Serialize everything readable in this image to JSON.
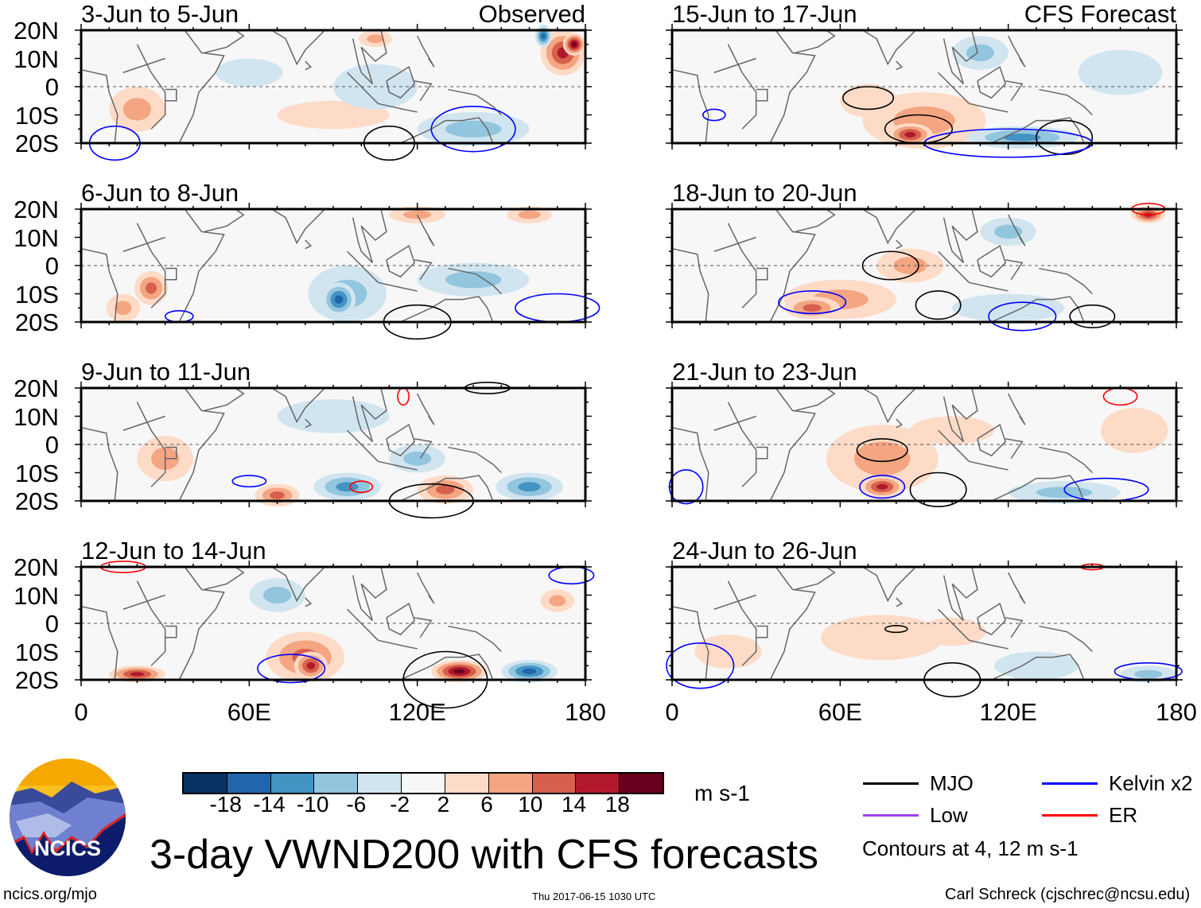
{
  "title": "3-day VWND200 with CFS forecasts",
  "columns": [
    {
      "label": "Observed",
      "panels": [
        "3-Jun to 5-Jun",
        "6-Jun to 8-Jun",
        "9-Jun to 11-Jun",
        "12-Jun to 14-Jun"
      ]
    },
    {
      "label": "CFS Forecast",
      "panels": [
        "15-Jun to 17-Jun",
        "18-Jun to 20-Jun",
        "21-Jun to 23-Jun",
        "24-Jun to 26-Jun"
      ]
    }
  ],
  "lat_ticks": [
    "20N",
    "10N",
    "0",
    "10S",
    "20S"
  ],
  "lon_ticks": [
    "0",
    "60E",
    "120E",
    "180"
  ],
  "colorbar": {
    "levels": [
      "-18",
      "-14",
      "-10",
      "-6",
      "-2",
      "2",
      "6",
      "10",
      "14",
      "18"
    ],
    "colors": [
      "#0a3264",
      "#2166ac",
      "#4393c3",
      "#92c5de",
      "#d1e5f0",
      "#f7f7f7",
      "#fddbc7",
      "#f4a582",
      "#d6604d",
      "#b2182b",
      "#67001f"
    ],
    "units": "m s-1"
  },
  "legend": {
    "items": [
      {
        "label": "MJO",
        "color": "#000000"
      },
      {
        "label": "Kelvin x2",
        "color": "#0000ff"
      },
      {
        "label": "Low",
        "color": "#a040f0"
      },
      {
        "label": "ER",
        "color": "#ff0000"
      }
    ],
    "note": "Contours at 4, 12 m s-1"
  },
  "logo": "NCICS",
  "footer": {
    "url": "ncics.org/mjo",
    "timestamp": "Thu 2017-06-15 1030 UTC",
    "credit": "Carl Schreck (cjschrec@ncsu.edu)"
  }
}
